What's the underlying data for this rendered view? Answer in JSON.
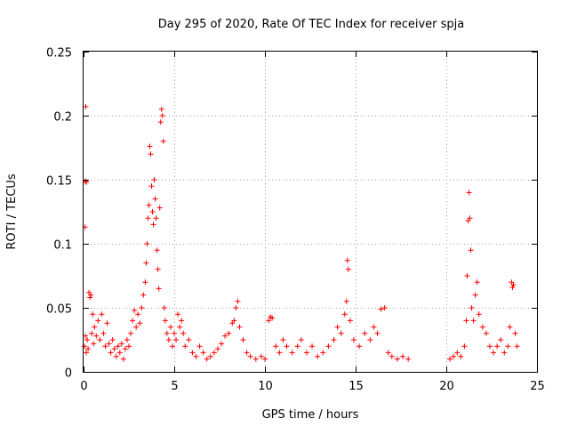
{
  "chart_data": {
    "type": "scatter",
    "title": "Day 295 of 2020, Rate Of TEC Index for receiver spja",
    "xlabel": "GPS time / hours",
    "ylabel": "ROTI / TECUs",
    "xlim": [
      0,
      25
    ],
    "ylim": [
      0,
      0.25
    ],
    "xticks": [
      0,
      5,
      10,
      15,
      20,
      25
    ],
    "yticks": [
      0,
      0.05,
      0.1,
      0.15,
      0.2,
      0.25
    ],
    "xtick_labels": [
      "0",
      "5",
      "10",
      "15",
      "20",
      "25"
    ],
    "ytick_labels": [
      "0",
      "0.05",
      "0.1",
      "0.15",
      "0.2",
      "0.25"
    ],
    "grid": true,
    "marker": "+",
    "series": [
      {
        "name": "ROTI",
        "color": "#ff0000",
        "points": [
          [
            0.05,
            0.02
          ],
          [
            0.1,
            0.028
          ],
          [
            0.15,
            0.015
          ],
          [
            0.12,
            0.207
          ],
          [
            0.1,
            0.149
          ],
          [
            0.15,
            0.148
          ],
          [
            0.08,
            0.113
          ],
          [
            0.2,
            0.025
          ],
          [
            0.25,
            0.018
          ],
          [
            0.3,
            0.062
          ],
          [
            0.35,
            0.058
          ],
          [
            0.4,
            0.06
          ],
          [
            0.45,
            0.03
          ],
          [
            0.5,
            0.045
          ],
          [
            0.55,
            0.022
          ],
          [
            0.6,
            0.035
          ],
          [
            0.7,
            0.028
          ],
          [
            0.8,
            0.04
          ],
          [
            0.9,
            0.025
          ],
          [
            1.0,
            0.045
          ],
          [
            1.1,
            0.03
          ],
          [
            1.2,
            0.02
          ],
          [
            1.3,
            0.038
          ],
          [
            1.4,
            0.022
          ],
          [
            1.5,
            0.015
          ],
          [
            1.6,
            0.025
          ],
          [
            1.7,
            0.018
          ],
          [
            1.8,
            0.012
          ],
          [
            1.9,
            0.02
          ],
          [
            2.0,
            0.015
          ],
          [
            2.1,
            0.022
          ],
          [
            2.2,
            0.01
          ],
          [
            2.3,
            0.018
          ],
          [
            2.4,
            0.025
          ],
          [
            2.5,
            0.02
          ],
          [
            2.6,
            0.03
          ],
          [
            2.7,
            0.04
          ],
          [
            2.8,
            0.048
          ],
          [
            2.9,
            0.035
          ],
          [
            3.0,
            0.045
          ],
          [
            3.1,
            0.038
          ],
          [
            3.2,
            0.05
          ],
          [
            3.3,
            0.06
          ],
          [
            3.4,
            0.07
          ],
          [
            3.45,
            0.085
          ],
          [
            3.5,
            0.1
          ],
          [
            3.55,
            0.12
          ],
          [
            3.6,
            0.13
          ],
          [
            3.65,
            0.176
          ],
          [
            3.7,
            0.17
          ],
          [
            3.75,
            0.145
          ],
          [
            3.8,
            0.125
          ],
          [
            3.85,
            0.115
          ],
          [
            3.9,
            0.15
          ],
          [
            3.95,
            0.135
          ],
          [
            4.0,
            0.12
          ],
          [
            4.05,
            0.095
          ],
          [
            4.1,
            0.08
          ],
          [
            4.15,
            0.065
          ],
          [
            4.2,
            0.128
          ],
          [
            4.25,
            0.195
          ],
          [
            4.3,
            0.205
          ],
          [
            4.35,
            0.2
          ],
          [
            4.4,
            0.18
          ],
          [
            4.45,
            0.05
          ],
          [
            4.5,
            0.04
          ],
          [
            4.6,
            0.03
          ],
          [
            4.7,
            0.025
          ],
          [
            4.8,
            0.035
          ],
          [
            4.9,
            0.02
          ],
          [
            5.0,
            0.03
          ],
          [
            5.1,
            0.025
          ],
          [
            5.2,
            0.045
          ],
          [
            5.3,
            0.035
          ],
          [
            5.4,
            0.04
          ],
          [
            5.5,
            0.03
          ],
          [
            5.6,
            0.02
          ],
          [
            5.8,
            0.025
          ],
          [
            6.0,
            0.015
          ],
          [
            6.2,
            0.012
          ],
          [
            6.4,
            0.02
          ],
          [
            6.6,
            0.015
          ],
          [
            6.8,
            0.01
          ],
          [
            7.0,
            0.012
          ],
          [
            7.2,
            0.015
          ],
          [
            7.4,
            0.018
          ],
          [
            7.6,
            0.022
          ],
          [
            7.8,
            0.028
          ],
          [
            8.0,
            0.03
          ],
          [
            8.2,
            0.038
          ],
          [
            8.3,
            0.04
          ],
          [
            8.4,
            0.05
          ],
          [
            8.5,
            0.055
          ],
          [
            8.6,
            0.035
          ],
          [
            8.8,
            0.025
          ],
          [
            9.0,
            0.015
          ],
          [
            9.2,
            0.012
          ],
          [
            9.5,
            0.01
          ],
          [
            9.8,
            0.012
          ],
          [
            10.0,
            0.01
          ],
          [
            10.2,
            0.04
          ],
          [
            10.3,
            0.043
          ],
          [
            10.4,
            0.042
          ],
          [
            10.6,
            0.02
          ],
          [
            10.8,
            0.015
          ],
          [
            11.0,
            0.025
          ],
          [
            11.2,
            0.02
          ],
          [
            11.5,
            0.015
          ],
          [
            11.8,
            0.02
          ],
          [
            12.0,
            0.025
          ],
          [
            12.3,
            0.015
          ],
          [
            12.6,
            0.02
          ],
          [
            12.9,
            0.012
          ],
          [
            13.2,
            0.015
          ],
          [
            13.5,
            0.02
          ],
          [
            13.8,
            0.025
          ],
          [
            14.0,
            0.035
          ],
          [
            14.2,
            0.03
          ],
          [
            14.4,
            0.045
          ],
          [
            14.5,
            0.055
          ],
          [
            14.55,
            0.087
          ],
          [
            14.6,
            0.08
          ],
          [
            14.7,
            0.04
          ],
          [
            14.9,
            0.025
          ],
          [
            15.2,
            0.02
          ],
          [
            15.5,
            0.03
          ],
          [
            15.8,
            0.025
          ],
          [
            16.0,
            0.035
          ],
          [
            16.2,
            0.03
          ],
          [
            16.4,
            0.049
          ],
          [
            16.6,
            0.05
          ],
          [
            16.8,
            0.015
          ],
          [
            17.0,
            0.012
          ],
          [
            17.3,
            0.01
          ],
          [
            17.6,
            0.012
          ],
          [
            17.9,
            0.01
          ],
          [
            20.2,
            0.01
          ],
          [
            20.4,
            0.012
          ],
          [
            20.6,
            0.015
          ],
          [
            20.8,
            0.012
          ],
          [
            21.0,
            0.02
          ],
          [
            21.1,
            0.04
          ],
          [
            21.15,
            0.075
          ],
          [
            21.2,
            0.118
          ],
          [
            21.25,
            0.14
          ],
          [
            21.3,
            0.12
          ],
          [
            21.35,
            0.095
          ],
          [
            21.4,
            0.05
          ],
          [
            21.5,
            0.04
          ],
          [
            21.6,
            0.06
          ],
          [
            21.7,
            0.07
          ],
          [
            21.8,
            0.045
          ],
          [
            22.0,
            0.035
          ],
          [
            22.2,
            0.03
          ],
          [
            22.4,
            0.02
          ],
          [
            22.6,
            0.015
          ],
          [
            22.8,
            0.02
          ],
          [
            23.0,
            0.025
          ],
          [
            23.2,
            0.015
          ],
          [
            23.4,
            0.02
          ],
          [
            23.5,
            0.035
          ],
          [
            23.6,
            0.07
          ],
          [
            23.65,
            0.066
          ],
          [
            23.7,
            0.068
          ],
          [
            23.8,
            0.03
          ],
          [
            23.9,
            0.02
          ]
        ]
      }
    ]
  }
}
